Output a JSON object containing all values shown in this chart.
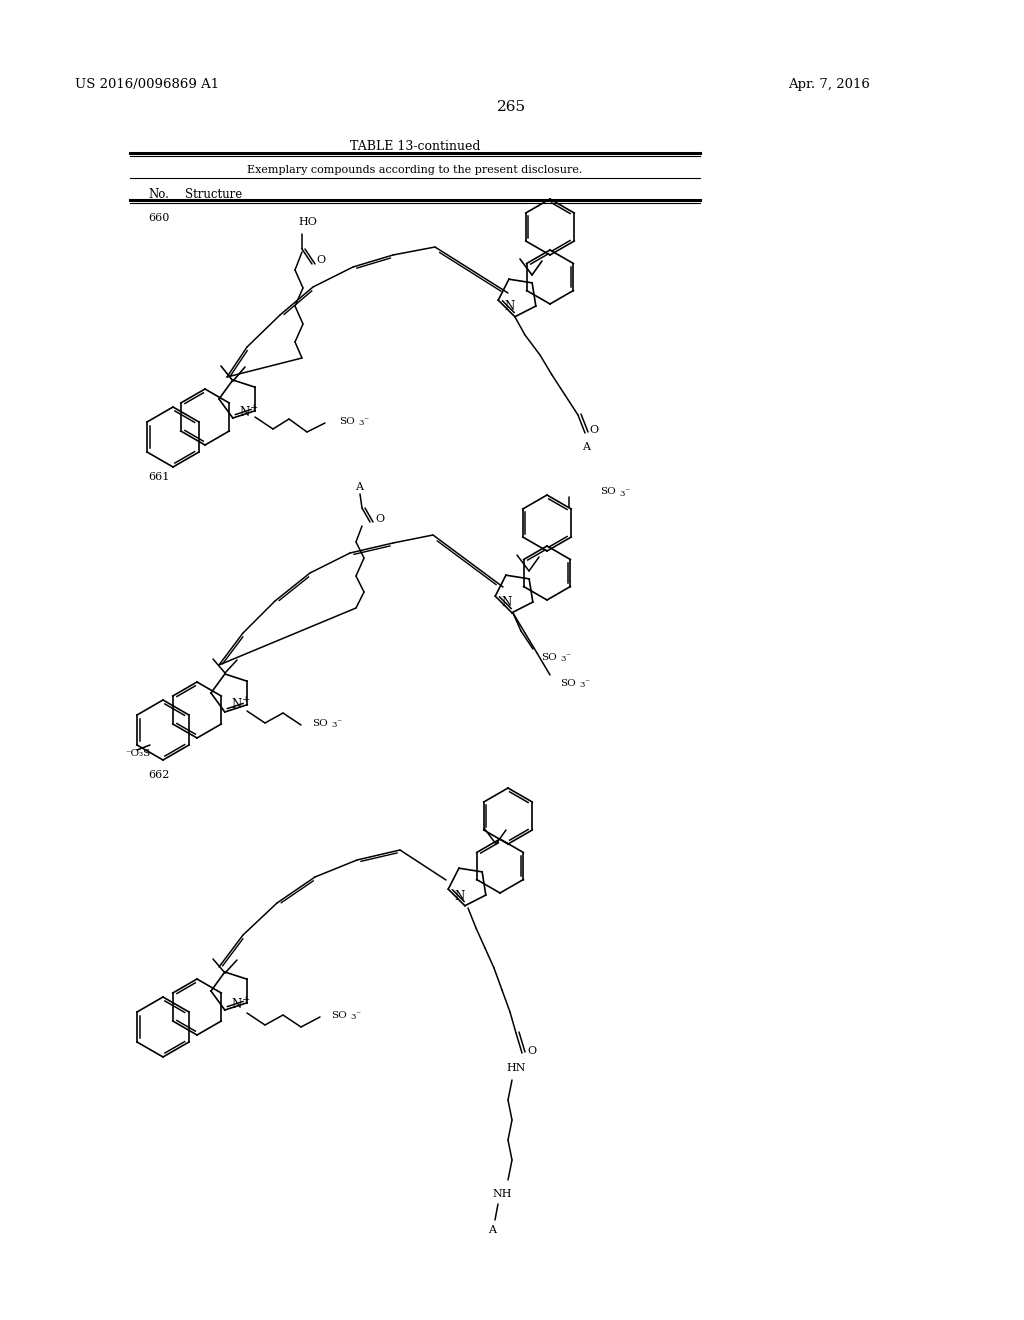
{
  "page_number": "265",
  "patent_number": "US 2016/0096869 A1",
  "patent_date": "Apr. 7, 2016",
  "table_title": "TABLE 13-continued",
  "table_subtitle": "Exemplary compounds according to the present disclosure.",
  "col_headers": [
    "No.",
    "Structure"
  ],
  "compound_numbers": [
    "660",
    "661",
    "662"
  ],
  "background_color": "#ffffff",
  "text_color": "#000000",
  "line_color": "#000000"
}
